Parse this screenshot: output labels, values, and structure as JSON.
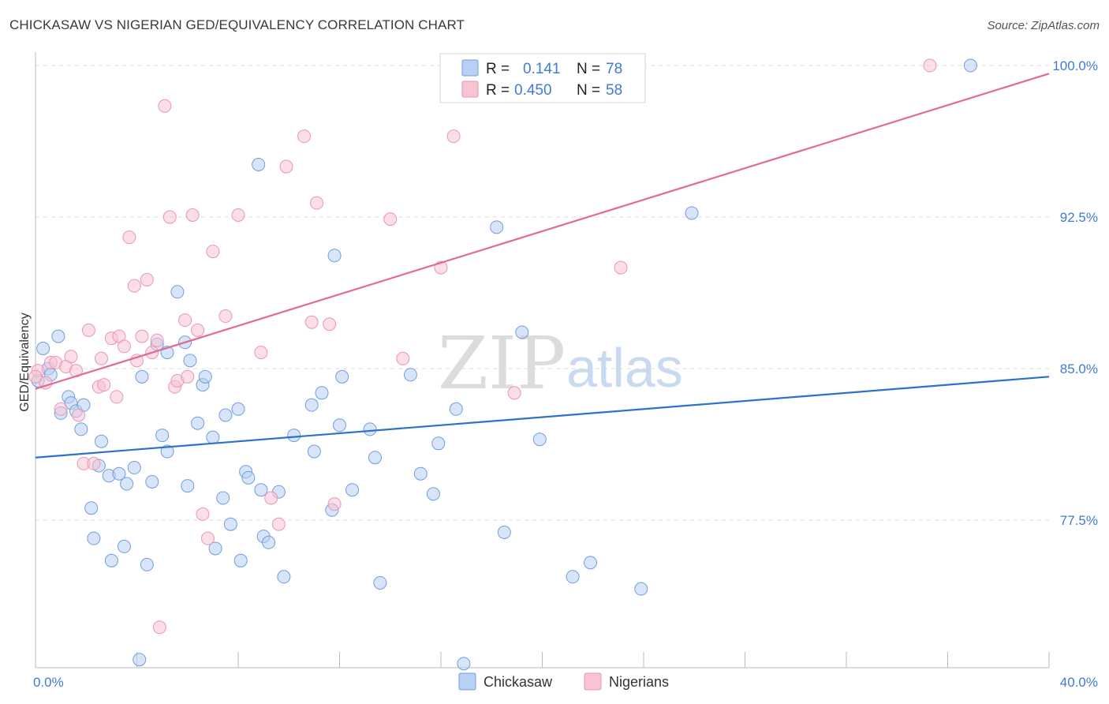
{
  "title": "CHICKASAW VS NIGERIAN GED/EQUIVALENCY CORRELATION CHART",
  "source": "Source: ZipAtlas.com",
  "watermark": {
    "zip": "ZIP",
    "atlas": "atlas"
  },
  "colors": {
    "chickasaw_fill": "#b8d0f3",
    "chickasaw_stroke": "#6f9ede",
    "chickasaw_line": "#2f72c9",
    "nigerians_fill": "#f8c3d3",
    "nigerians_stroke": "#e897b2",
    "nigerians_line": "#e06b95",
    "tick_text": "#3f7bd4",
    "grid": "#dddddd"
  },
  "legend": {
    "rows": [
      {
        "r_label": "R =",
        "r_value": "0.141",
        "n_label": "N =",
        "n_value": "78"
      },
      {
        "r_label": "R =",
        "r_value": "0.450",
        "n_label": "N =",
        "n_value": "58"
      }
    ]
  },
  "bottom_legend": [
    "Chickasaw",
    "Nigerians"
  ],
  "chart_data": {
    "type": "scatter",
    "title": "CHICKASAW VS NIGERIAN GED/EQUIVALENCY CORRELATION CHART",
    "xlabel": "",
    "ylabel": "GED/Equivalency",
    "xlim": [
      0,
      40
    ],
    "ylim": [
      70.2,
      100.9
    ],
    "x_tick_labels": [
      {
        "value": 0,
        "label": "0.0%"
      },
      {
        "value": 40,
        "label": "40.0%"
      }
    ],
    "y_tick_labels": [
      {
        "value": 77.5,
        "label": "77.5%"
      },
      {
        "value": 85.0,
        "label": "85.0%"
      },
      {
        "value": 92.5,
        "label": "92.5%"
      },
      {
        "value": 100.0,
        "label": "100.0%"
      }
    ],
    "grid": true,
    "legend_position": "top-center",
    "series": [
      {
        "name": "Chickasaw",
        "trend": {
          "x": [
            0,
            40
          ],
          "y": [
            80.6,
            84.6
          ]
        },
        "points": [
          [
            0.1,
            84.4
          ],
          [
            0.3,
            86.0
          ],
          [
            0.5,
            85.0
          ],
          [
            0.6,
            84.7
          ],
          [
            0.9,
            86.6
          ],
          [
            1.0,
            82.8
          ],
          [
            1.3,
            83.6
          ],
          [
            1.4,
            83.3
          ],
          [
            1.6,
            82.9
          ],
          [
            1.8,
            82.0
          ],
          [
            1.9,
            83.2
          ],
          [
            2.2,
            78.1
          ],
          [
            2.3,
            76.6
          ],
          [
            2.5,
            80.2
          ],
          [
            2.6,
            81.4
          ],
          [
            2.9,
            79.7
          ],
          [
            3.0,
            75.5
          ],
          [
            3.3,
            79.8
          ],
          [
            3.5,
            76.2
          ],
          [
            3.6,
            79.3
          ],
          [
            3.9,
            80.1
          ],
          [
            4.1,
            70.6
          ],
          [
            4.2,
            84.6
          ],
          [
            4.4,
            75.3
          ],
          [
            4.6,
            79.4
          ],
          [
            4.8,
            86.2
          ],
          [
            5.0,
            81.7
          ],
          [
            5.2,
            85.8
          ],
          [
            5.2,
            80.9
          ],
          [
            5.6,
            88.8
          ],
          [
            5.9,
            86.3
          ],
          [
            6.0,
            79.2
          ],
          [
            6.1,
            85.4
          ],
          [
            6.4,
            82.3
          ],
          [
            6.6,
            84.2
          ],
          [
            6.7,
            84.6
          ],
          [
            7.0,
            81.6
          ],
          [
            7.1,
            76.1
          ],
          [
            7.4,
            78.6
          ],
          [
            7.5,
            82.7
          ],
          [
            7.7,
            77.3
          ],
          [
            8.0,
            83.0
          ],
          [
            8.1,
            75.5
          ],
          [
            8.3,
            79.9
          ],
          [
            8.4,
            79.6
          ],
          [
            8.8,
            95.1
          ],
          [
            8.9,
            79.0
          ],
          [
            9.0,
            76.7
          ],
          [
            9.2,
            76.4
          ],
          [
            9.6,
            78.9
          ],
          [
            9.8,
            74.7
          ],
          [
            10.2,
            81.7
          ],
          [
            10.9,
            83.2
          ],
          [
            11.0,
            80.9
          ],
          [
            11.3,
            83.8
          ],
          [
            11.7,
            78.0
          ],
          [
            11.8,
            90.6
          ],
          [
            12.0,
            82.2
          ],
          [
            12.1,
            84.6
          ],
          [
            12.5,
            79.0
          ],
          [
            13.2,
            82.0
          ],
          [
            13.4,
            80.6
          ],
          [
            13.6,
            74.4
          ],
          [
            14.8,
            84.7
          ],
          [
            15.2,
            79.8
          ],
          [
            15.7,
            78.8
          ],
          [
            15.9,
            81.3
          ],
          [
            16.6,
            83.0
          ],
          [
            16.9,
            70.4
          ],
          [
            18.2,
            92.0
          ],
          [
            18.5,
            76.9
          ],
          [
            19.2,
            86.8
          ],
          [
            19.9,
            81.5
          ],
          [
            21.2,
            74.7
          ],
          [
            21.9,
            75.4
          ],
          [
            23.9,
            74.1
          ],
          [
            25.9,
            92.7
          ],
          [
            36.9,
            100.0
          ]
        ]
      },
      {
        "name": "Nigerians",
        "trend": {
          "x": [
            0,
            40
          ],
          "y": [
            84.0,
            99.6
          ]
        },
        "points": [
          [
            0.1,
            84.9
          ],
          [
            0.4,
            84.3
          ],
          [
            0.6,
            85.3
          ],
          [
            0.8,
            85.3
          ],
          [
            1.0,
            83.0
          ],
          [
            1.2,
            85.1
          ],
          [
            1.4,
            85.6
          ],
          [
            1.6,
            84.9
          ],
          [
            1.7,
            82.7
          ],
          [
            1.9,
            80.3
          ],
          [
            2.1,
            86.9
          ],
          [
            2.3,
            80.3
          ],
          [
            2.5,
            84.1
          ],
          [
            2.6,
            85.5
          ],
          [
            2.7,
            84.2
          ],
          [
            3.0,
            86.5
          ],
          [
            3.2,
            83.6
          ],
          [
            3.3,
            86.6
          ],
          [
            3.5,
            86.1
          ],
          [
            3.7,
            91.5
          ],
          [
            3.9,
            89.1
          ],
          [
            4.0,
            85.4
          ],
          [
            4.2,
            86.6
          ],
          [
            4.4,
            89.4
          ],
          [
            4.6,
            85.8
          ],
          [
            4.8,
            86.4
          ],
          [
            4.9,
            72.2
          ],
          [
            5.1,
            98.0
          ],
          [
            5.3,
            92.5
          ],
          [
            5.5,
            84.1
          ],
          [
            5.6,
            84.4
          ],
          [
            5.9,
            87.4
          ],
          [
            6.0,
            84.6
          ],
          [
            6.2,
            92.6
          ],
          [
            6.4,
            86.9
          ],
          [
            6.6,
            77.8
          ],
          [
            6.8,
            76.6
          ],
          [
            7.0,
            90.8
          ],
          [
            7.5,
            87.6
          ],
          [
            8.0,
            92.6
          ],
          [
            8.9,
            85.8
          ],
          [
            9.3,
            78.6
          ],
          [
            9.6,
            77.3
          ],
          [
            9.9,
            95.0
          ],
          [
            10.6,
            96.5
          ],
          [
            10.9,
            87.3
          ],
          [
            11.1,
            93.2
          ],
          [
            11.6,
            87.2
          ],
          [
            11.8,
            78.3
          ],
          [
            14.0,
            92.4
          ],
          [
            14.5,
            85.5
          ],
          [
            16.0,
            90.0
          ],
          [
            16.5,
            96.5
          ],
          [
            18.3,
            100.0
          ],
          [
            18.9,
            83.8
          ],
          [
            23.1,
            90.0
          ],
          [
            35.3,
            100.0
          ],
          [
            0.0,
            84.6
          ]
        ]
      }
    ]
  }
}
